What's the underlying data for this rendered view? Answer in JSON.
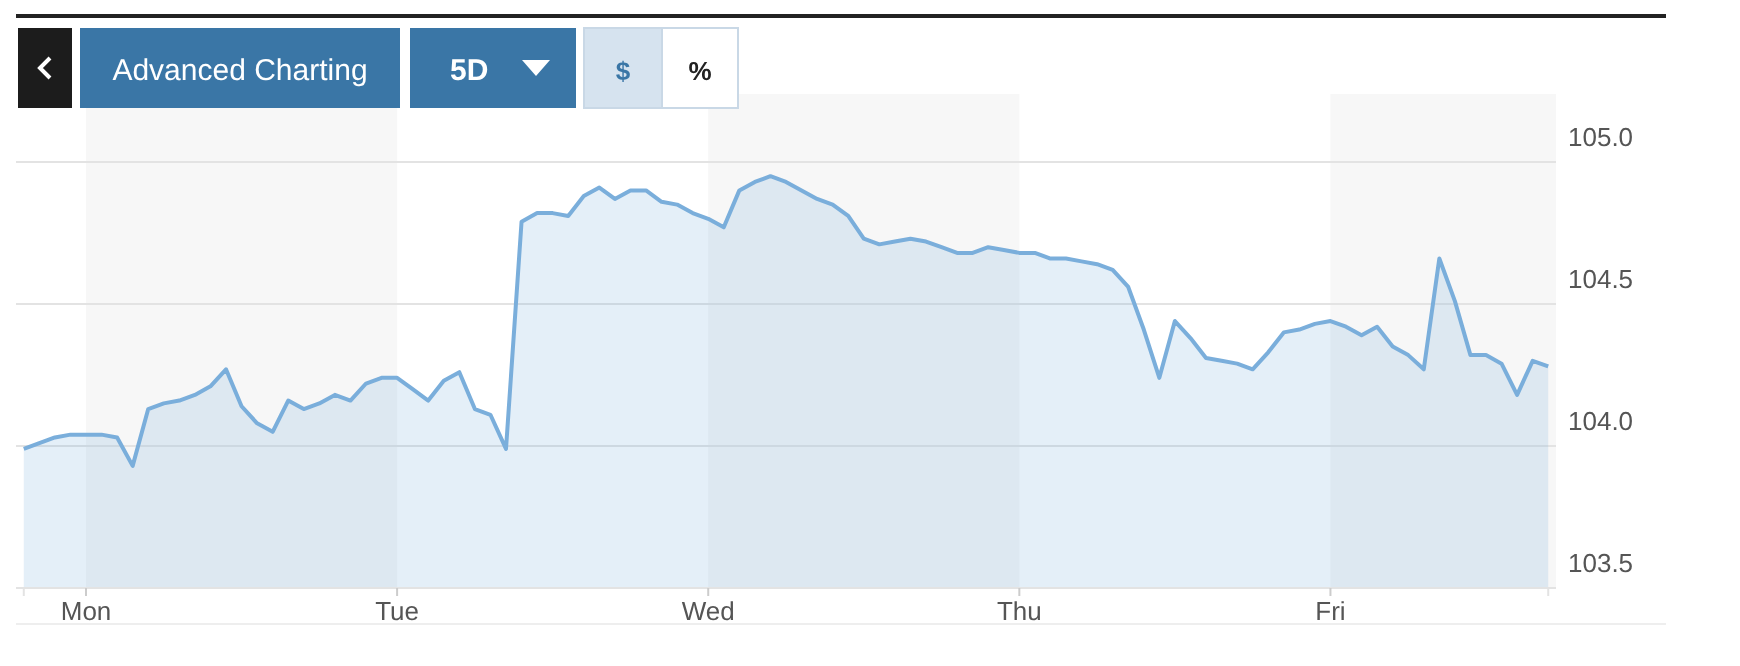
{
  "chart_data": {
    "type": "area",
    "annotations": [
      "Advanced Charting",
      "5D",
      "$",
      "%"
    ],
    "categories": [
      null,
      null,
      null,
      null,
      "Mon",
      null,
      null,
      null,
      null,
      null,
      null,
      null,
      null,
      null,
      null,
      null,
      null,
      null,
      null,
      null,
      null,
      null,
      null,
      null,
      "Tue",
      null,
      null,
      null,
      null,
      null,
      null,
      null,
      null,
      null,
      null,
      null,
      null,
      null,
      null,
      null,
      null,
      null,
      null,
      null,
      "Wed",
      null,
      null,
      null,
      null,
      null,
      null,
      null,
      null,
      null,
      null,
      null,
      null,
      null,
      null,
      null,
      null,
      null,
      null,
      null,
      "Thu",
      null,
      null,
      null,
      null,
      null,
      null,
      null,
      null,
      null,
      null,
      null,
      null,
      null,
      null,
      null,
      null,
      null,
      null,
      null,
      "Fri",
      null,
      null,
      null,
      null,
      null,
      null,
      null,
      null,
      null,
      null,
      null,
      null,
      null,
      null
    ],
    "series": [
      {
        "color": "#7aaedb",
        "values": [
          103.99,
          104.01,
          104.03,
          104.04,
          104.04,
          104.04,
          104.03,
          103.93,
          104.13,
          104.15,
          104.16,
          104.18,
          104.21,
          104.27,
          104.14,
          104.08,
          104.05,
          104.16,
          104.13,
          104.15,
          104.18,
          104.16,
          104.22,
          104.24,
          104.24,
          104.2,
          104.16,
          104.23,
          104.26,
          104.13,
          104.11,
          103.99,
          104.79,
          104.82,
          104.82,
          104.81,
          104.88,
          104.91,
          104.87,
          104.9,
          104.9,
          104.86,
          104.85,
          104.82,
          104.8,
          104.77,
          104.9,
          104.93,
          104.95,
          104.93,
          104.9,
          104.87,
          104.85,
          104.81,
          104.73,
          104.71,
          104.72,
          104.73,
          104.72,
          104.7,
          104.68,
          104.68,
          104.7,
          104.69,
          104.68,
          104.68,
          104.66,
          104.66,
          104.65,
          104.64,
          104.62,
          104.56,
          104.41,
          104.24,
          104.44,
          104.38,
          104.31,
          104.3,
          104.29,
          104.27,
          104.33,
          104.4,
          104.41,
          104.43,
          104.44,
          104.42,
          104.39,
          104.42,
          104.35,
          104.32,
          104.27,
          104.66,
          104.51,
          104.32,
          104.32,
          104.29,
          104.18,
          104.3,
          104.28
        ]
      }
    ],
    "ylim": [
      103.5,
      105
    ],
    "yticks": [
      {
        "value": 103.5,
        "label": "103.5"
      },
      {
        "value": 104,
        "label": "104.0"
      },
      {
        "value": 104.5,
        "label": "104.5"
      },
      {
        "value": 105,
        "label": "105.0"
      }
    ],
    "grid": "y"
  }
}
